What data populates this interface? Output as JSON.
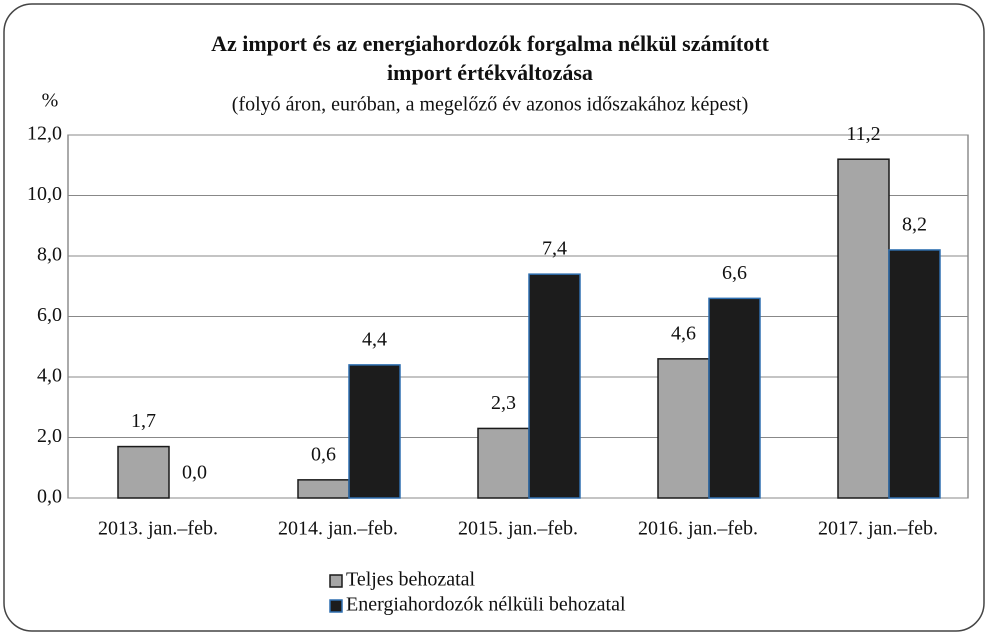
{
  "chart_data": {
    "type": "bar",
    "title": [
      "Az import és az energiahordozók forgalma nélkül számított",
      "import értékváltozása"
    ],
    "subtitle": "(folyó áron, euróban, a megelőző év azonos időszakához képest)",
    "ylabel": "%",
    "categories": [
      "2013. jan.–feb.",
      "2014. jan.–feb.",
      "2015. jan.–feb.",
      "2016. jan.–feb.",
      "2017. jan.–feb."
    ],
    "series": [
      {
        "name": "Teljes behozatal",
        "color": "#a6a6a6",
        "stroke": "#1a1a1a",
        "values": [
          1.7,
          0.6,
          2.3,
          4.6,
          11.2
        ],
        "value_labels": [
          "1,7",
          "0,6",
          "2,3",
          "4,6",
          "11,2"
        ]
      },
      {
        "name": "Energiahordozók nélküli behozatal",
        "color": "#1c1c1c",
        "stroke": "#2e6fb0",
        "values": [
          0.0,
          4.4,
          7.4,
          6.6,
          8.2
        ],
        "value_labels": [
          "0,0",
          "4,4",
          "7,4",
          "6,6",
          "8,2"
        ]
      }
    ],
    "ylim": [
      0,
      12
    ],
    "yticks": [
      {
        "value": 0,
        "label": "0,0"
      },
      {
        "value": 2,
        "label": "2,0"
      },
      {
        "value": 4,
        "label": "4,0"
      },
      {
        "value": 6,
        "label": "6,0"
      },
      {
        "value": 8,
        "label": "8,0"
      },
      {
        "value": 10,
        "label": "10,0"
      },
      {
        "value": 12,
        "label": "12,0"
      }
    ],
    "grid": true
  }
}
